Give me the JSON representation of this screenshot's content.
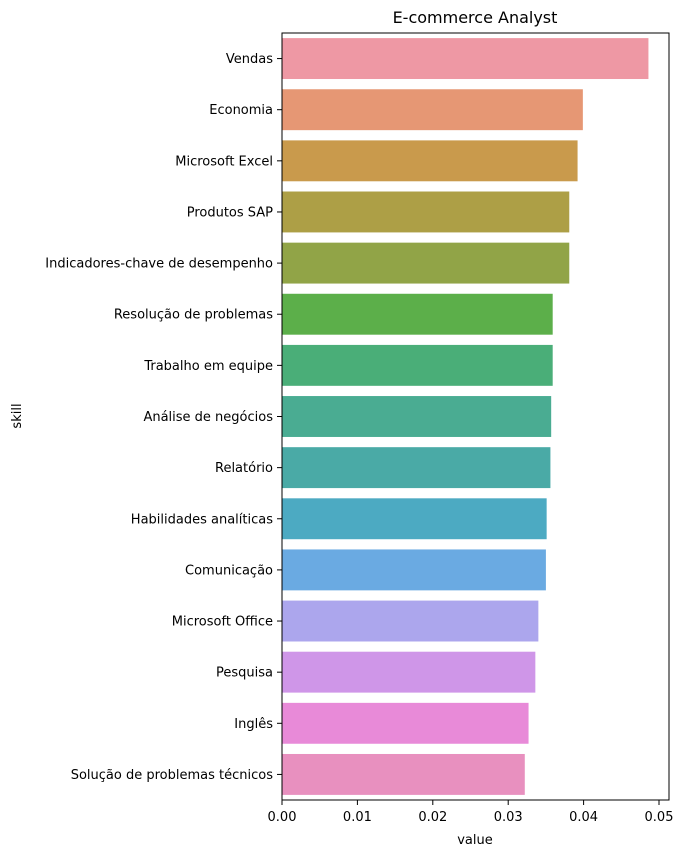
{
  "chart_data": {
    "type": "bar",
    "orientation": "horizontal",
    "title": "E-commerce Analyst",
    "xlabel": "value",
    "ylabel": "skill",
    "xlim": [
      0,
      0.051
    ],
    "xticks": [
      0.0,
      0.01,
      0.02,
      0.03,
      0.04,
      0.05
    ],
    "xtick_labels": [
      "0.00",
      "0.01",
      "0.02",
      "0.03",
      "0.04",
      "0.05"
    ],
    "grid": false,
    "legend": "none",
    "categories": [
      "Vendas",
      "Economia",
      "Microsoft Excel",
      "Produtos SAP",
      "Indicadores-chave de desempenho",
      "Resolução de problemas",
      "Trabalho em equipe",
      "Análise de negócios",
      "Relatório",
      "Habilidades analíticas",
      "Comunicação",
      "Microsoft Office",
      "Pesquisa",
      "Inglês",
      "Solução de problemas técnicos"
    ],
    "values": [
      0.0486,
      0.0399,
      0.0392,
      0.0381,
      0.0381,
      0.0359,
      0.0359,
      0.0357,
      0.0356,
      0.0351,
      0.035,
      0.034,
      0.0336,
      0.0327,
      0.0322
    ],
    "colors": [
      "#ee98a4",
      "#e69774",
      "#c99a4c",
      "#ad9f46",
      "#91a447",
      "#5caf4a",
      "#4aae78",
      "#4aac92",
      "#4aaaa6",
      "#4caac2",
      "#6aaae2",
      "#aca6ed",
      "#cf96e8",
      "#e88ad8",
      "#e890bf"
    ]
  }
}
